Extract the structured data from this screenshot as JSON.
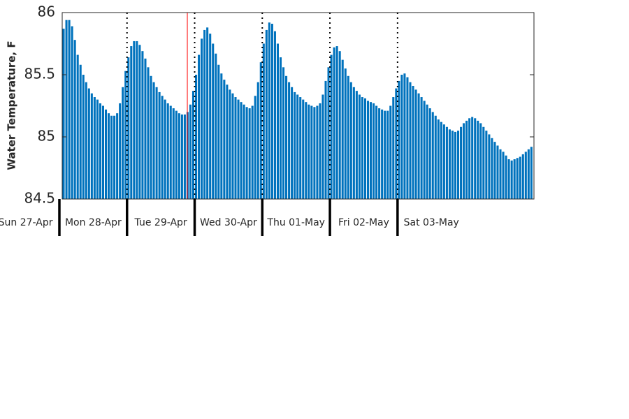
{
  "chart_data": {
    "type": "bar",
    "ylabel": "Water Temperature, F",
    "color": "#0072bd",
    "xlim": [
      1,
      168.4
    ],
    "ylim": [
      84.5,
      86
    ],
    "yticks": [
      84.5,
      85,
      85.5,
      86
    ],
    "xticks": [
      0,
      24,
      48,
      72,
      96,
      120
    ],
    "day_labels": [
      {
        "value": -12,
        "label": "Sun 27-Apr"
      },
      {
        "value": 12,
        "label": "Mon 28-Apr"
      },
      {
        "value": 36,
        "label": "Tue 29-Apr"
      },
      {
        "value": 60,
        "label": "Wed 30-Apr"
      },
      {
        "value": 84,
        "label": "Thu 01-May"
      },
      {
        "value": 108,
        "label": "Fri 02-May"
      },
      {
        "value": 132,
        "label": "Sat 03-May"
      }
    ],
    "current_time": 45.4,
    "current_time_color": "#ff0000",
    "x": [
      1,
      2,
      3,
      4,
      5,
      6,
      7,
      8,
      9,
      10,
      11,
      12,
      13,
      14,
      15,
      16,
      17,
      18,
      19,
      20,
      21,
      22,
      23,
      24,
      25,
      26,
      27,
      28,
      29,
      30,
      31,
      32,
      33,
      34,
      35,
      36,
      37,
      38,
      39,
      40,
      41,
      42,
      43,
      44,
      45,
      46,
      47,
      48,
      49,
      50,
      51,
      52,
      53,
      54,
      55,
      56,
      57,
      58,
      59,
      60,
      61,
      62,
      63,
      64,
      65,
      66,
      67,
      68,
      69,
      70,
      71,
      72,
      73,
      74,
      75,
      76,
      77,
      78,
      79,
      80,
      81,
      82,
      83,
      84,
      85,
      86,
      87,
      88,
      89,
      90,
      91,
      92,
      93,
      94,
      95,
      96,
      97,
      98,
      99,
      100,
      101,
      102,
      103,
      104,
      105,
      106,
      107,
      108,
      109,
      110,
      111,
      112,
      113,
      114,
      115,
      116,
      117,
      118,
      119,
      120,
      121,
      122,
      123,
      124,
      125,
      126,
      127,
      128,
      129,
      130,
      131,
      132,
      133,
      134,
      135,
      136,
      137,
      138,
      139,
      140,
      141,
      142,
      143,
      144,
      145,
      146,
      147,
      148,
      149,
      150,
      151,
      152,
      153,
      154,
      155,
      156,
      157,
      158,
      159,
      160,
      161,
      162,
      163,
      164,
      165,
      166,
      167
    ],
    "values": [
      85.87,
      85.94,
      85.94,
      85.89,
      85.78,
      85.66,
      85.58,
      85.5,
      85.44,
      85.39,
      85.35,
      85.32,
      85.3,
      85.27,
      85.25,
      85.22,
      85.19,
      85.17,
      85.17,
      85.19,
      85.27,
      85.4,
      85.53,
      85.64,
      85.73,
      85.77,
      85.77,
      85.74,
      85.69,
      85.63,
      85.56,
      85.49,
      85.44,
      85.4,
      85.36,
      85.33,
      85.3,
      85.27,
      85.25,
      85.23,
      85.21,
      85.19,
      85.18,
      85.18,
      85.2,
      85.26,
      85.37,
      85.5,
      85.66,
      85.79,
      85.86,
      85.88,
      85.83,
      85.75,
      85.67,
      85.58,
      85.51,
      85.46,
      85.42,
      85.38,
      85.35,
      85.32,
      85.3,
      85.28,
      85.26,
      85.24,
      85.23,
      85.25,
      85.33,
      85.44,
      85.6,
      85.75,
      85.86,
      85.92,
      85.91,
      85.85,
      85.75,
      85.64,
      85.56,
      85.49,
      85.44,
      85.4,
      85.36,
      85.34,
      85.32,
      85.3,
      85.28,
      85.26,
      85.25,
      85.24,
      85.25,
      85.27,
      85.34,
      85.45,
      85.56,
      85.66,
      85.72,
      85.73,
      85.69,
      85.62,
      85.55,
      85.49,
      85.44,
      85.4,
      85.37,
      85.34,
      85.32,
      85.31,
      85.29,
      85.28,
      85.27,
      85.25,
      85.23,
      85.22,
      85.21,
      85.21,
      85.25,
      85.32,
      85.39,
      85.45,
      85.5,
      85.51,
      85.48,
      85.44,
      85.41,
      85.38,
      85.35,
      85.32,
      85.29,
      85.26,
      85.23,
      85.2,
      85.17,
      85.14,
      85.12,
      85.1,
      85.08,
      85.06,
      85.05,
      85.04,
      85.05,
      85.08,
      85.11,
      85.13,
      85.15,
      85.16,
      85.15,
      85.13,
      85.11,
      85.08,
      85.05,
      85.02,
      84.99,
      84.96,
      84.93,
      84.9,
      84.88,
      84.85,
      84.82,
      84.81,
      84.82,
      84.83,
      84.84,
      84.86,
      84.88,
      84.9,
      84.92
    ]
  }
}
